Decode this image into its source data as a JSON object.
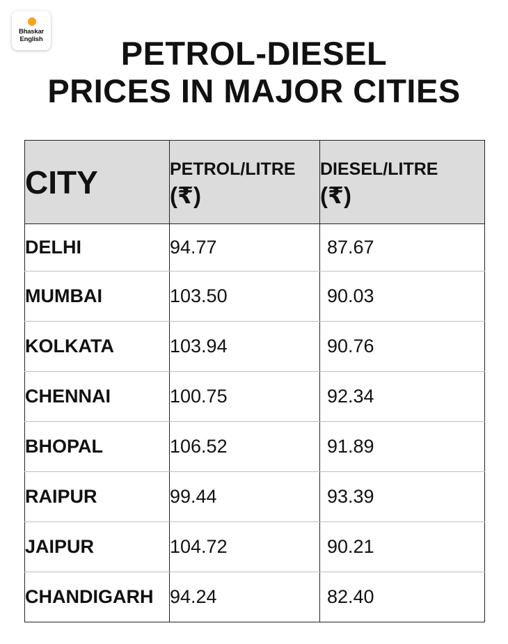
{
  "brand": {
    "line1": "Bhaskar",
    "line2": "English",
    "dot_color": "#f7a11a"
  },
  "title": {
    "line1": "PETROL-DIESEL",
    "line2": "PRICES IN MAJOR CITIES"
  },
  "table": {
    "header_bg": "#dcdcdc",
    "headers": {
      "city": "CITY",
      "petrol": "PETROL/LITRE",
      "petrol_unit": "(₹)",
      "diesel": "DIESEL/LITRE",
      "diesel_unit": "(₹)"
    },
    "rows": [
      {
        "city": "DELHI",
        "petrol": "94.77",
        "diesel": "87.67"
      },
      {
        "city": "MUMBAI",
        "petrol": "103.50",
        "diesel": "90.03"
      },
      {
        "city": "KOLKATA",
        "petrol": "103.94",
        "diesel": "90.76"
      },
      {
        "city": "CHENNAI",
        "petrol": "100.75",
        "diesel": "92.34"
      },
      {
        "city": "BHOPAL",
        "petrol": "106.52",
        "diesel": "91.89"
      },
      {
        "city": "RAIPUR",
        "petrol": "99.44",
        "diesel": "93.39"
      },
      {
        "city": "JAIPUR",
        "petrol": "104.72",
        "diesel": "90.21"
      },
      {
        "city": "CHANDIGARH",
        "petrol": "94.24",
        "diesel": "82.40"
      }
    ]
  }
}
